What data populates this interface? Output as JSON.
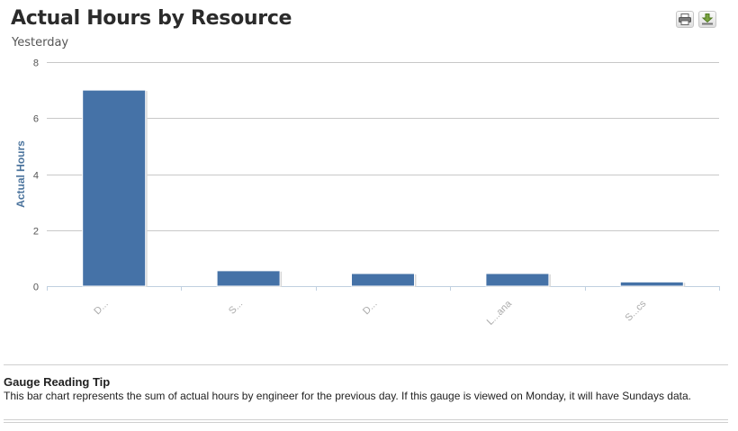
{
  "header": {
    "title": "Actual Hours by Resource",
    "subtitle": "Yesterday",
    "print_icon": "printer-icon",
    "download_icon": "download-icon"
  },
  "chart_data": {
    "type": "bar",
    "title": "Actual Hours by Resource",
    "subtitle": "Yesterday",
    "xlabel": "",
    "ylabel": "Actual Hours",
    "categories": [
      "D...",
      "S...",
      "D...",
      "L...ana",
      "S...cs"
    ],
    "values": [
      7.0,
      0.55,
      0.45,
      0.45,
      0.15
    ],
    "ylim": [
      0,
      8
    ],
    "yticks": [
      0,
      2,
      4,
      6,
      8
    ],
    "grid": true,
    "legend": "none",
    "bar_color": "#4572a7",
    "category_labels_obscured": true
  },
  "tip": {
    "title": "Gauge Reading Tip",
    "text": "This bar chart represents the sum of actual hours by engineer for the previous day. If this gauge is viewed on Monday, it will have Sundays data."
  }
}
